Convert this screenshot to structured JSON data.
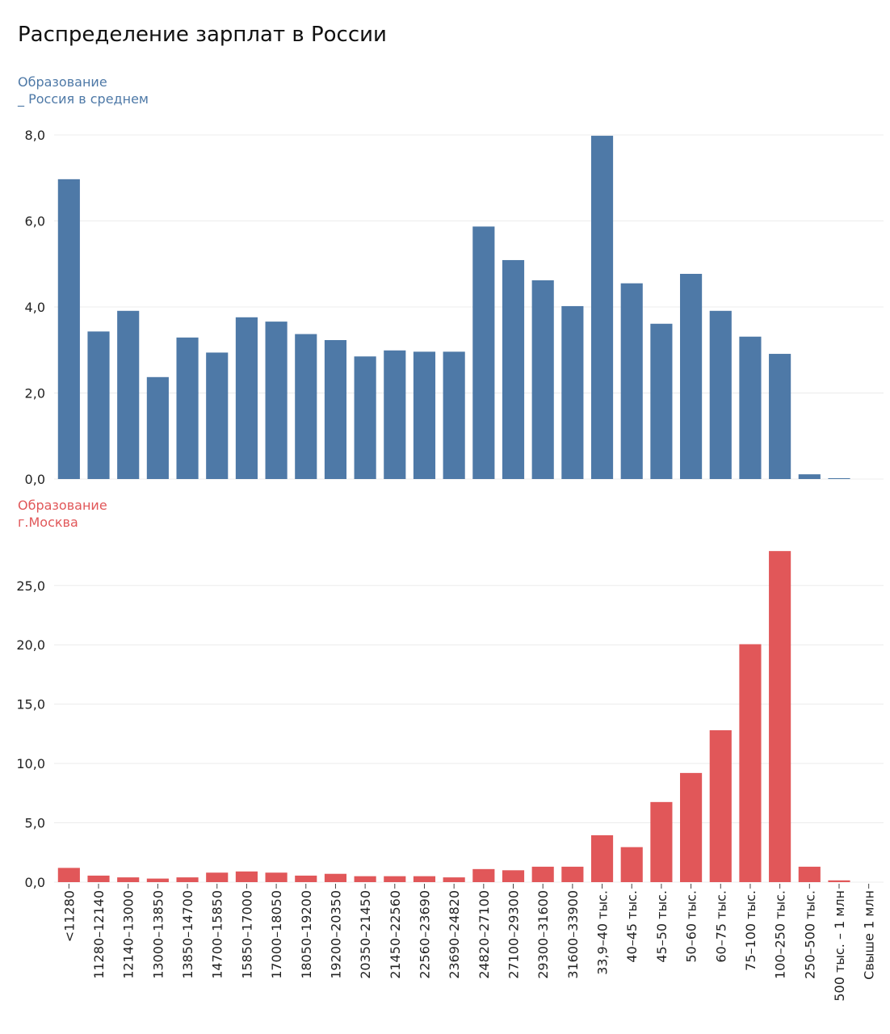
{
  "title": "Распределение зарплат в России",
  "colors": {
    "top": "#4e79a7",
    "bottom": "#e15759",
    "grid": "#ececec",
    "axis_text": "#222222"
  },
  "chart_data": [
    {
      "type": "bar",
      "label_lines": [
        "Образование",
        "_ Россия в среднем"
      ],
      "color": "#4e79a7",
      "ylim": [
        0,
        8
      ],
      "y_ticks": [
        {
          "value": 0,
          "label": "0,0"
        },
        {
          "value": 2,
          "label": "2,0"
        },
        {
          "value": 4,
          "label": "4,0"
        },
        {
          "value": 6,
          "label": "6,0"
        },
        {
          "value": 8,
          "label": "8,0"
        }
      ],
      "grid": true,
      "values": [
        6.97,
        3.43,
        3.91,
        2.37,
        3.29,
        2.94,
        3.76,
        3.66,
        3.37,
        3.23,
        2.85,
        2.99,
        2.96,
        2.96,
        5.87,
        5.09,
        4.62,
        4.02,
        7.98,
        4.55,
        3.61,
        4.77,
        3.91,
        3.31,
        2.91,
        0.11,
        0.02,
        0
      ]
    },
    {
      "type": "bar",
      "label_lines": [
        "Образование",
        "г.Москва"
      ],
      "color": "#e15759",
      "ylim": [
        0,
        29
      ],
      "y_ticks": [
        {
          "value": 0,
          "label": "0,0"
        },
        {
          "value": 5,
          "label": "5,0"
        },
        {
          "value": 10,
          "label": "10,0"
        },
        {
          "value": 15,
          "label": "15,0"
        },
        {
          "value": 20,
          "label": "20,0"
        },
        {
          "value": 25,
          "label": "25,0"
        }
      ],
      "grid": true,
      "values": [
        1.2,
        0.55,
        0.4,
        0.3,
        0.4,
        0.8,
        0.9,
        0.8,
        0.55,
        0.7,
        0.5,
        0.5,
        0.5,
        0.4,
        1.1,
        1.0,
        1.3,
        1.3,
        3.95,
        2.95,
        6.75,
        9.2,
        12.8,
        20.05,
        27.9,
        1.3,
        0.15,
        0
      ]
    }
  ],
  "categories": [
    "<11280",
    "11280–12140",
    "12140–13000",
    "13000–13850",
    "13850–14700",
    "14700–15850",
    "15850–17000",
    "17000–18050",
    "18050–19200",
    "19200–20350",
    "20350–21450",
    "21450–22560",
    "22560–23690",
    "23690–24820",
    "24820–27100",
    "27100–29300",
    "29300–31600",
    "31600–33900",
    "33,9–40 тыс.",
    "40–45 тыс.",
    "45–50 тыс.",
    "50–60 тыс.",
    "60–75 тыс.",
    "75–100 тыс.",
    "100–250 тыс.",
    "250–500 тыс.",
    "500 тыс. – 1 млн",
    "Свыше 1 млн"
  ]
}
